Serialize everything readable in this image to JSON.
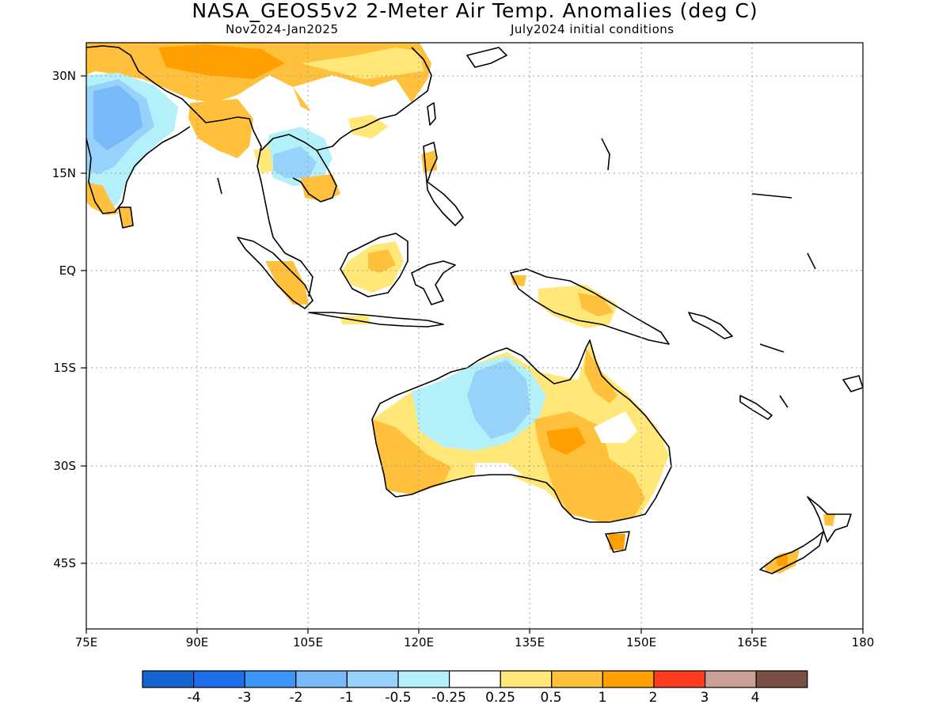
{
  "header": {
    "title": "NASA_GEOS5v2 2-Meter Air Temp. Anomalies (deg C)",
    "period": "Nov2024-Jan2025",
    "init": "July2024 initial conditions"
  },
  "axes": {
    "y_labels": [
      "30N",
      "15N",
      "EQ",
      "15S",
      "30S",
      "45S"
    ],
    "x_labels": [
      "75E",
      "90E",
      "105E",
      "120E",
      "135E",
      "150E",
      "165E",
      "180"
    ]
  },
  "colorbar": {
    "colors": [
      "#1464d2",
      "#1e6eeb",
      "#3c96f5",
      "#78b9fa",
      "#96d2fa",
      "#b4f0fa",
      "#ffffff",
      "#ffe878",
      "#ffc03c",
      "#ffa000",
      "#ff3c1e",
      "#c8a096",
      "#785046"
    ],
    "labels": [
      "-4",
      "-3",
      "-2",
      "-1",
      "-0.5",
      "-0.25",
      "0.25",
      "0.5",
      "1",
      "2",
      "3",
      "4"
    ]
  },
  "map": {
    "region": "Indo-Pacific / Australia",
    "lon_range": [
      75,
      180
    ],
    "lat_range": [
      -55,
      35
    ]
  }
}
